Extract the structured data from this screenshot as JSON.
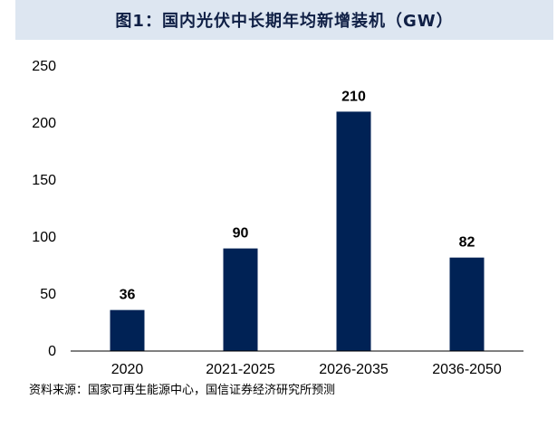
{
  "title": "图1：国内光伏中长期年均新增装机（GW）",
  "source": "资料来源：国家可再生能源中心，国信证券经济研究所预测",
  "colors": {
    "bar": "#002255",
    "title_background": "#dde6f1",
    "title_text": "#0f1f45",
    "axis": "#000000"
  },
  "chart_data": {
    "type": "bar",
    "categories": [
      "2020",
      "2021-2025",
      "2026-2035",
      "2036-2050"
    ],
    "values": [
      36,
      90,
      210,
      82
    ],
    "value_labels": [
      "36",
      "90",
      "210",
      "82"
    ],
    "y_ticks": [
      "0",
      "50",
      "100",
      "150",
      "200",
      "250"
    ],
    "ylim": [
      0,
      250
    ],
    "grid": false,
    "legend": "none"
  }
}
